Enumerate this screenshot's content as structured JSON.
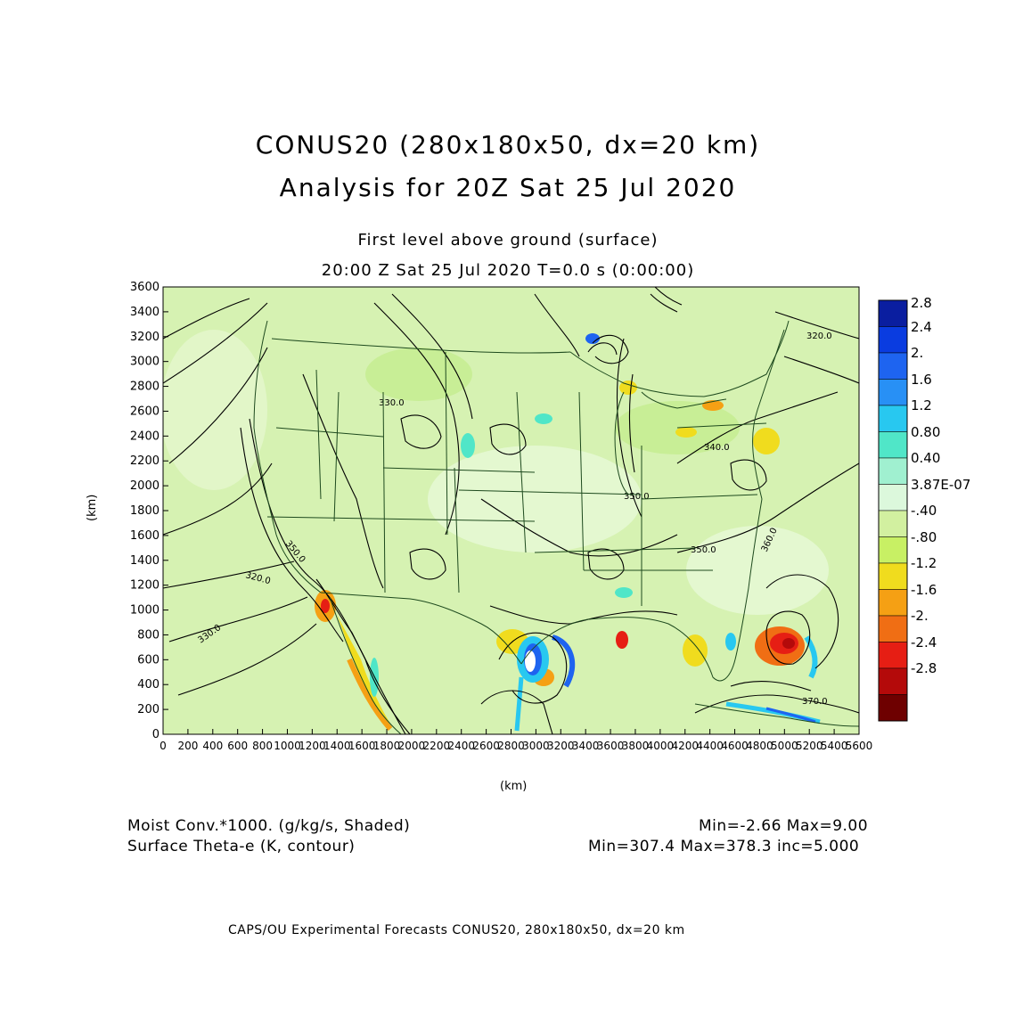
{
  "header": {
    "title_line1": "CONUS20 (280x180x50, dx=20 km)",
    "title_line2": "Analysis for 20Z Sat 25 Jul 2020",
    "subtitle_line1": "First level above ground (surface)",
    "subtitle_line2": "20:00 Z Sat 25 Jul 2020    T=0.0 s (0:00:00)"
  },
  "axes": {
    "x_label": "(km)",
    "y_label": "(km)",
    "x_ticks": [
      "0",
      "200",
      "400",
      "600",
      "800",
      "1000",
      "1200",
      "1400",
      "1600",
      "1800",
      "2000",
      "2200",
      "2400",
      "2600",
      "2800",
      "3000",
      "3200",
      "3400",
      "3600",
      "3800",
      "4000",
      "4200",
      "4400",
      "4600",
      "4800",
      "5000",
      "5200",
      "5400",
      "5600"
    ],
    "y_ticks": [
      "0",
      "200",
      "400",
      "600",
      "800",
      "1000",
      "1200",
      "1400",
      "1600",
      "1800",
      "2000",
      "2200",
      "2400",
      "2600",
      "2800",
      "3000",
      "3200",
      "3400",
      "3600"
    ],
    "x_range": [
      0,
      5600
    ],
    "y_range": [
      0,
      3600
    ]
  },
  "colorbar": {
    "labels": [
      "2.8",
      "2.4",
      "2.",
      "1.6",
      "1.2",
      "0.80",
      "0.40",
      "3.87E-07",
      "-.40",
      "-.80",
      "-1.2",
      "-1.6",
      "-2.",
      "-2.4",
      "-2.8"
    ],
    "colors": [
      "#0a1ea0",
      "#0a3ce0",
      "#1e64f0",
      "#2890f5",
      "#28c8f0",
      "#50e6c8",
      "#a0f0d0",
      "#dcf8dc",
      "#d2f0a0",
      "#c8f064",
      "#f0dc1e",
      "#f5a014",
      "#f06e14",
      "#e61e14",
      "#b40a0a",
      "#6e0000"
    ]
  },
  "contour_labels": [
    "320.0",
    "330.0",
    "350.0",
    "360.0",
    "370.0",
    "340.0"
  ],
  "footer": {
    "shade_field": "Moist Conv.*1000. (g/kg/s, Shaded)",
    "shade_stats": "Min=-2.66  Max=9.00",
    "contour_field": "Surface Theta-e (K, contour)",
    "contour_stats": "Min=307.4  Max=378.3  inc=5.000",
    "credit": "CAPS/OU Experimental Forecasts   CONUS20, 280x180x50, dx=20 km"
  }
}
